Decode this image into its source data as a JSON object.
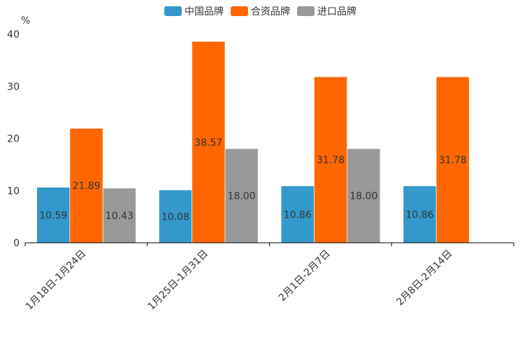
{
  "chart_data": {
    "type": "bar",
    "title": "",
    "xlabel": "",
    "ylabel": "%",
    "ylim": [
      0,
      40
    ],
    "yticks": [
      0,
      10,
      20,
      30,
      40
    ],
    "grid": false,
    "legend_position": "top-center",
    "categories": [
      "1月18日-1月24日",
      "1月25日-1月31日",
      "2月1日-2月7日",
      "2月8日-2月14日"
    ],
    "series": [
      {
        "name": "中国品牌",
        "color": "#3399cc",
        "values": [
          10.59,
          10.08,
          10.86,
          10.86
        ],
        "labels": [
          "10.59",
          "10.08",
          "10.86",
          "10.86"
        ]
      },
      {
        "name": "合资品牌",
        "color": "#ff6600",
        "values": [
          21.89,
          38.57,
          31.78,
          31.78
        ],
        "labels": [
          "21.89",
          "38.57",
          "31.78",
          "31.78"
        ]
      },
      {
        "name": "进口品牌",
        "color": "#999999",
        "values": [
          10.43,
          18.0,
          18.0,
          null
        ],
        "labels": [
          "10.43",
          "18.00",
          "18.00",
          ""
        ]
      }
    ]
  }
}
